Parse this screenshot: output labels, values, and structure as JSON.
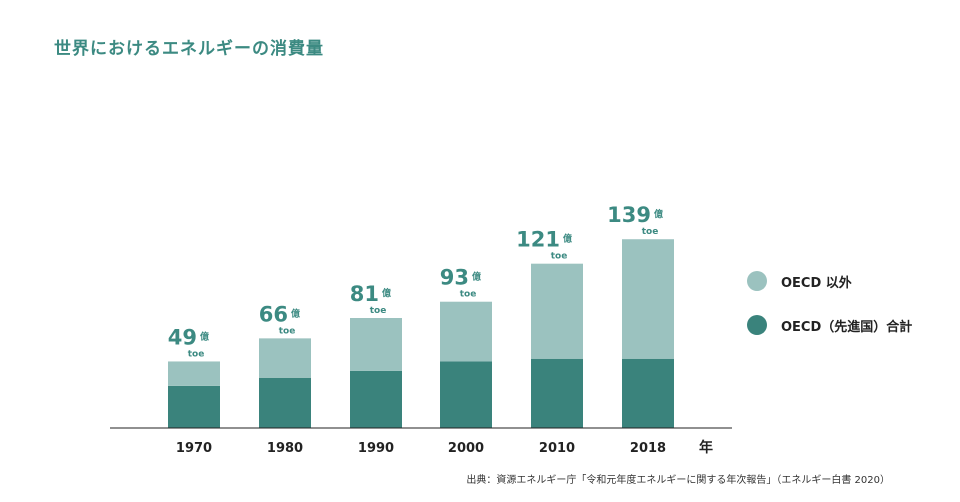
{
  "title": "世界におけるエネルギーの消費量",
  "colors": {
    "oecd": "#3a837c",
    "non_oecd": "#9bc2bf",
    "value": "#3c8a82",
    "title": "#3c8a82"
  },
  "value_unit": "億",
  "value_subunit": "toe",
  "x_unit": "年",
  "source": "出典：資源エネルギー庁「令和元年度エネルギーに関する年次報告」（エネルギー白書 2020）",
  "legend": [
    {
      "key": "non_oecd",
      "label": "OECD 以外"
    },
    {
      "key": "oecd",
      "label": "OECD（先進国）合計"
    }
  ],
  "chart_data": {
    "type": "bar",
    "stacked": true,
    "categories": [
      "1970",
      "1980",
      "1990",
      "2000",
      "2010",
      "2018"
    ],
    "series": [
      {
        "name": "OECD（先進国）合計",
        "key": "oecd",
        "values": [
          31,
          37,
          42,
          49,
          51,
          51
        ]
      },
      {
        "name": "OECD 以外",
        "key": "non_oecd",
        "values": [
          18,
          29,
          39,
          44,
          70,
          88
        ]
      }
    ],
    "totals": [
      49,
      66,
      81,
      93,
      121,
      139
    ],
    "ylim": [
      0,
      150
    ],
    "grid": false,
    "legend_position": "right"
  }
}
